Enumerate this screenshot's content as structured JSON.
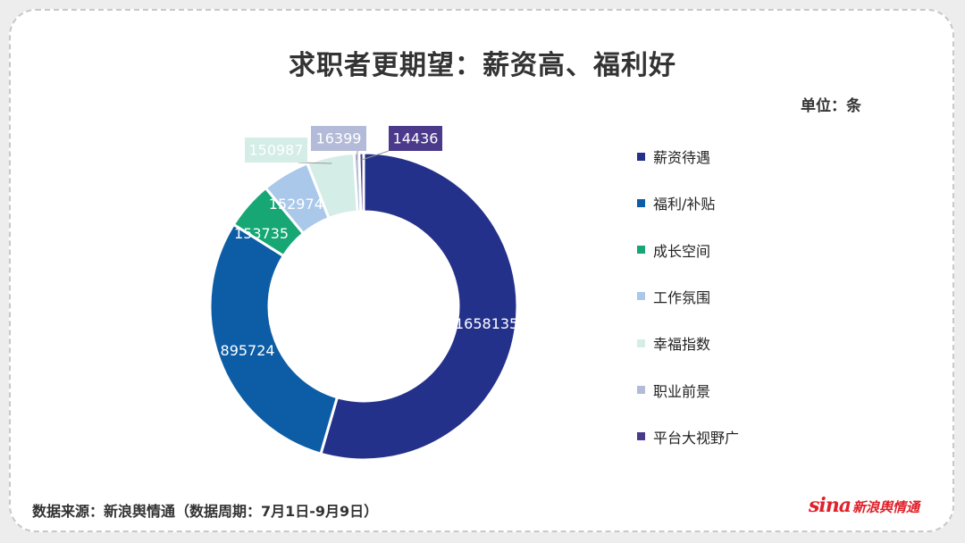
{
  "chart_data": {
    "type": "pie",
    "title": "求职者更期望：薪资高、福利好",
    "unit_label": "单位：条",
    "slices": [
      {
        "label": "薪资待遇",
        "value": 1658135,
        "color": "#24318a"
      },
      {
        "label": "福利/补贴",
        "value": 895724,
        "color": "#0d5da6"
      },
      {
        "label": "成长空间",
        "value": 153735,
        "color": "#16a775"
      },
      {
        "label": "工作氛围",
        "value": 152974,
        "color": "#a9c8ea"
      },
      {
        "label": "幸福指数",
        "value": 150987,
        "color": "#d4ede6"
      },
      {
        "label": "职业前景",
        "value": 16399,
        "color": "#b4bbd8"
      },
      {
        "label": "平台大视野广",
        "value": 14436,
        "color": "#4b3a8c"
      }
    ],
    "legend_position": "right"
  },
  "footer": {
    "source": "数据来源：新浪舆情通（数据周期：7月1日-9月9日）"
  },
  "logo": {
    "brand": "sina",
    "text": "新浪舆情通"
  }
}
